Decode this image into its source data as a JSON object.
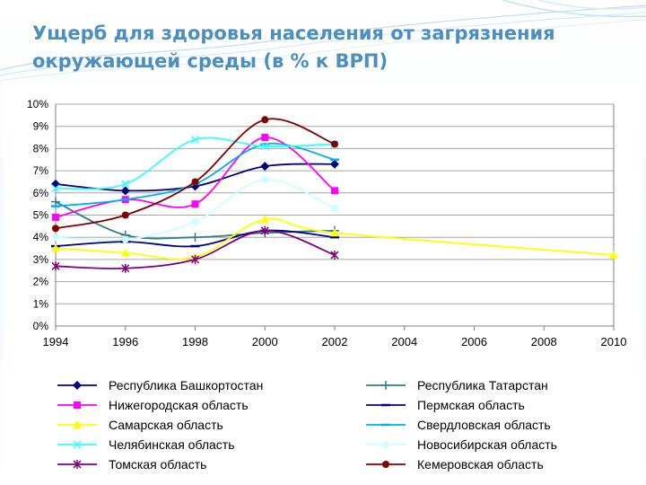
{
  "slide": {
    "title_line1": "Ущерб для здоровья населения от загрязнения",
    "title_line2": "окружающей среды (в % к ВРП)"
  },
  "chart_data": {
    "type": "line",
    "title": "",
    "xlabel": "",
    "ylabel": "",
    "xlim": [
      1994,
      2010
    ],
    "ylim": [
      0,
      10
    ],
    "x_ticks": [
      1994,
      1996,
      1998,
      2000,
      2002,
      2004,
      2006,
      2008,
      2010
    ],
    "y_ticks": [
      0,
      1,
      2,
      3,
      4,
      5,
      6,
      7,
      8,
      9,
      10
    ],
    "y_tick_suffix": "%",
    "grid": "horizontal",
    "legend_position": "bottom",
    "series": [
      {
        "name": "Республика Башкортостан",
        "color": "#000080",
        "marker": "diamond",
        "x": [
          1994,
          1996,
          1998,
          2000,
          2002
        ],
        "values": [
          6.4,
          6.1,
          6.3,
          7.2,
          7.3
        ]
      },
      {
        "name": "Республика Татарстан",
        "color": "#2e7e8e",
        "marker": "plus",
        "x": [
          1994,
          1996,
          1998,
          2000,
          2002
        ],
        "values": [
          5.6,
          4.1,
          4.0,
          4.2,
          4.3
        ]
      },
      {
        "name": "Нижегородская область",
        "color": "#ff00ff",
        "marker": "square",
        "x": [
          1994,
          1996,
          1998,
          2000,
          2002
        ],
        "values": [
          4.9,
          5.7,
          5.5,
          8.5,
          6.1
        ]
      },
      {
        "name": "Пермская область",
        "color": "#000080",
        "marker": "dash",
        "x": [
          1994,
          1996,
          1998,
          2000,
          2002
        ],
        "values": [
          3.6,
          3.8,
          3.6,
          4.3,
          4.0
        ]
      },
      {
        "name": "Самарская область",
        "color": "#ffff00",
        "marker": "triangle",
        "x": [
          1994,
          1996,
          1998,
          2000,
          2002,
          2010
        ],
        "values": [
          3.5,
          3.3,
          3.1,
          4.8,
          4.2,
          3.2
        ]
      },
      {
        "name": "Свердловская область",
        "color": "#00b0f0",
        "marker": "dash",
        "x": [
          1994,
          1996,
          1998,
          2000,
          2002
        ],
        "values": [
          5.4,
          5.7,
          6.4,
          8.2,
          7.5
        ]
      },
      {
        "name": "Челябинская область",
        "color": "#33ffff",
        "marker": "x",
        "x": [
          1994,
          1996,
          1998,
          2000,
          2002
        ],
        "values": [
          6.2,
          6.4,
          8.4,
          8.1,
          8.2
        ]
      },
      {
        "name": "Новосибирская область",
        "color": "#ccffff",
        "marker": "circle",
        "x": [
          1994,
          1996,
          1998,
          2000,
          2002
        ],
        "values": [
          4.0,
          3.9,
          4.7,
          6.6,
          5.3
        ]
      },
      {
        "name": "Томская область",
        "color": "#800080",
        "marker": "star",
        "x": [
          1994,
          1996,
          1998,
          2000,
          2002
        ],
        "values": [
          2.7,
          2.6,
          3.0,
          4.3,
          3.2
        ]
      },
      {
        "name": "Кемеровская область",
        "color": "#800000",
        "marker": "circle",
        "x": [
          1994,
          1996,
          1998,
          2000,
          2002
        ],
        "values": [
          4.4,
          5.0,
          6.5,
          9.3,
          8.2
        ]
      }
    ]
  }
}
